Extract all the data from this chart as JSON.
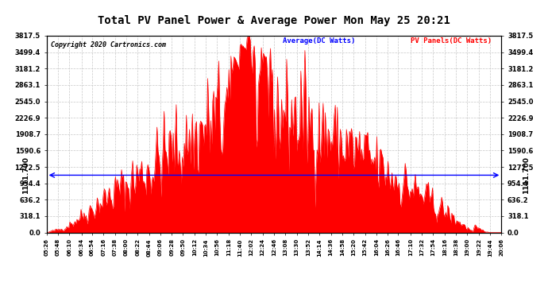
{
  "title": "Total PV Panel Power & Average Power Mon May 25 20:21",
  "copyright": "Copyright 2020 Cartronics.com",
  "legend_avg": "Average(DC Watts)",
  "legend_pv": "PV Panels(DC Watts)",
  "avg_value": 1111.7,
  "y_max": 3817.5,
  "y_ticks": [
    0.0,
    318.1,
    636.2,
    954.4,
    1272.5,
    1590.6,
    1908.7,
    2226.9,
    2545.0,
    2863.1,
    3181.2,
    3499.4,
    3817.5
  ],
  "avg_line_label": "1111.700",
  "background_color": "#ffffff",
  "fill_color": "#ff0000",
  "avg_line_color": "#0000ff",
  "grid_color": "#c8c8c8",
  "title_color": "#000000",
  "copyright_color": "#000000",
  "tick_labels": [
    "05:26",
    "05:48",
    "06:10",
    "06:34",
    "06:54",
    "07:16",
    "07:38",
    "08:00",
    "08:22",
    "08:44",
    "09:06",
    "09:28",
    "09:50",
    "10:12",
    "10:34",
    "10:56",
    "11:18",
    "11:40",
    "12:02",
    "12:24",
    "12:46",
    "13:08",
    "13:30",
    "13:52",
    "14:14",
    "14:36",
    "14:58",
    "15:20",
    "15:42",
    "16:04",
    "16:26",
    "16:46",
    "17:10",
    "17:32",
    "17:54",
    "18:16",
    "18:38",
    "19:00",
    "19:22",
    "19:44",
    "20:06"
  ]
}
